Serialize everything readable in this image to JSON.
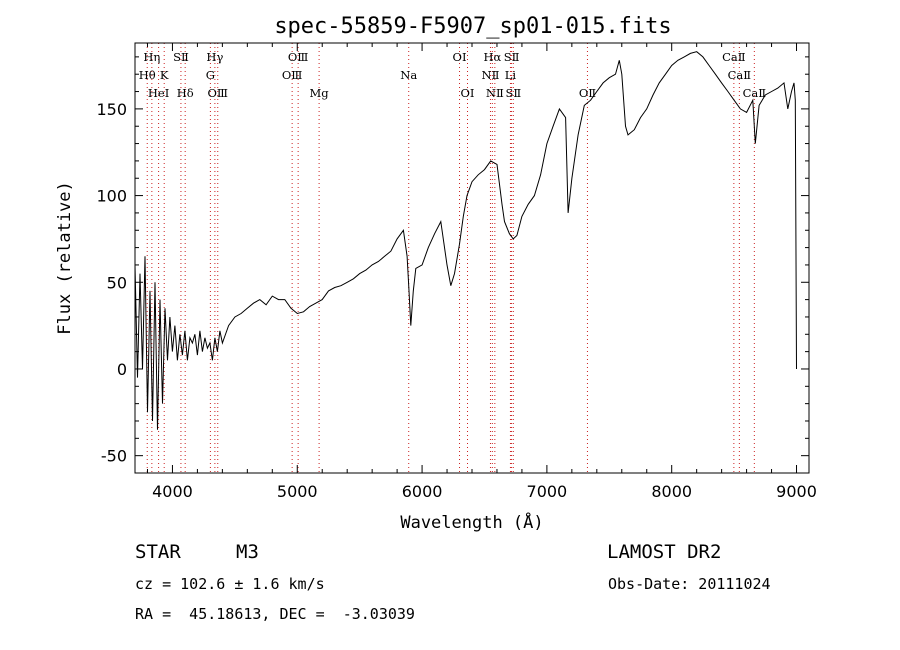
{
  "chart_data": {
    "type": "line",
    "title": "spec-55859-F5907_sp01-015.fits",
    "xlabel": "Wavelength (Å)",
    "ylabel": "Flux (relative)",
    "xlim": [
      3700,
      9100
    ],
    "ylim": [
      -60,
      188
    ],
    "xticks": [
      4000,
      5000,
      6000,
      7000,
      8000,
      9000
    ],
    "yticks": [
      -50,
      0,
      50,
      100,
      150
    ],
    "grid": false,
    "series": [
      {
        "color": "#000000",
        "x": [
          3700,
          3720,
          3740,
          3760,
          3780,
          3800,
          3820,
          3840,
          3860,
          3880,
          3900,
          3920,
          3940,
          3960,
          3980,
          4000,
          4020,
          4040,
          4060,
          4080,
          4100,
          4120,
          4140,
          4160,
          4180,
          4200,
          4220,
          4240,
          4260,
          4280,
          4300,
          4320,
          4340,
          4360,
          4380,
          4400,
          4450,
          4500,
          4550,
          4600,
          4650,
          4700,
          4750,
          4800,
          4850,
          4900,
          4950,
          5000,
          5050,
          5100,
          5150,
          5200,
          5250,
          5300,
          5350,
          5400,
          5450,
          5500,
          5550,
          5600,
          5650,
          5700,
          5750,
          5800,
          5850,
          5880,
          5895,
          5910,
          5930,
          5950,
          6000,
          6050,
          6100,
          6150,
          6200,
          6230,
          6260,
          6300,
          6330,
          6360,
          6400,
          6450,
          6500,
          6550,
          6600,
          6640,
          6660,
          6700,
          6730,
          6760,
          6800,
          6850,
          6900,
          6950,
          7000,
          7050,
          7100,
          7150,
          7170,
          7200,
          7250,
          7300,
          7350,
          7400,
          7450,
          7500,
          7550,
          7580,
          7600,
          7630,
          7650,
          7700,
          7750,
          7800,
          7850,
          7900,
          7950,
          8000,
          8050,
          8100,
          8150,
          8200,
          8250,
          8300,
          8350,
          8400,
          8450,
          8500,
          8550,
          8600,
          8650,
          8670,
          8700,
          8750,
          8800,
          8850,
          8900,
          8930,
          8960,
          8980,
          8990,
          9000
        ],
        "y": [
          60,
          -5,
          55,
          0,
          65,
          -25,
          45,
          -30,
          50,
          -35,
          40,
          -20,
          35,
          5,
          30,
          10,
          25,
          5,
          20,
          8,
          22,
          5,
          18,
          15,
          20,
          8,
          22,
          10,
          18,
          12,
          15,
          5,
          18,
          10,
          22,
          15,
          25,
          30,
          32,
          35,
          38,
          40,
          37,
          42,
          40,
          40,
          35,
          32,
          33,
          36,
          38,
          40,
          45,
          47,
          48,
          50,
          52,
          55,
          57,
          60,
          62,
          65,
          68,
          75,
          80,
          65,
          45,
          25,
          45,
          58,
          60,
          70,
          78,
          85,
          60,
          48,
          55,
          72,
          88,
          100,
          108,
          112,
          115,
          120,
          118,
          95,
          85,
          78,
          75,
          77,
          88,
          95,
          100,
          112,
          130,
          140,
          150,
          145,
          90,
          110,
          135,
          152,
          155,
          160,
          165,
          168,
          170,
          178,
          170,
          140,
          135,
          138,
          145,
          150,
          158,
          165,
          170,
          175,
          178,
          180,
          182,
          183,
          180,
          175,
          170,
          165,
          160,
          155,
          150,
          148,
          155,
          130,
          152,
          158,
          160,
          162,
          165,
          150,
          160,
          165,
          155,
          0
        ]
      }
    ],
    "lines": [
      {
        "label": "Hη",
        "w": 3835,
        "row": 0
      },
      {
        "label": "SⅡ",
        "w": 4068,
        "row": 0
      },
      {
        "label": "Hγ",
        "w": 4340,
        "row": 0
      },
      {
        "label": "OⅢ",
        "w": 5007,
        "row": 0
      },
      {
        "label": "OⅠ",
        "w": 6300,
        "row": 0
      },
      {
        "label": "Hα",
        "w": 6563,
        "row": 0
      },
      {
        "label": "SⅡ",
        "w": 6717,
        "row": 0
      },
      {
        "label": "CaⅡ",
        "w": 8498,
        "row": 0
      },
      {
        "label": "Hθ",
        "w": 3798,
        "row": 1
      },
      {
        "label": "K",
        "w": 3934,
        "row": 1
      },
      {
        "label": "G",
        "w": 4304,
        "row": 1
      },
      {
        "label": "OⅢ",
        "w": 4959,
        "row": 1
      },
      {
        "label": "NⅡ",
        "w": 6548,
        "row": 1
      },
      {
        "label": "Li",
        "w": 6708,
        "row": 1
      },
      {
        "label": "CaⅡ",
        "w": 8542,
        "row": 1
      },
      {
        "label": "HeⅠ",
        "w": 3889,
        "row": 2
      },
      {
        "label": "Hδ",
        "w": 4102,
        "row": 2
      },
      {
        "label": "OⅢ",
        "w": 4363,
        "row": 2
      },
      {
        "label": "Mg",
        "w": 5175,
        "row": 2
      },
      {
        "label": "Na",
        "w": 5893,
        "row": 1
      },
      {
        "label": "OⅠ",
        "w": 6364,
        "row": 2
      },
      {
        "label": "NⅡ",
        "w": 6583,
        "row": 2
      },
      {
        "label": "SⅡ",
        "w": 6731,
        "row": 2
      },
      {
        "label": "OⅡ",
        "w": 7325,
        "row": 2
      },
      {
        "label": "CaⅡ",
        "w": 8662,
        "row": 2
      }
    ]
  },
  "info": {
    "object_type": "STAR",
    "subclass": "M3",
    "survey": "LAMOST DR2",
    "redshift": "cz = 102.6 ± 1.6 km/s",
    "obs_date": "Obs-Date: 20111024",
    "coords": "RA =  45.18613, DEC =  -3.03039"
  }
}
